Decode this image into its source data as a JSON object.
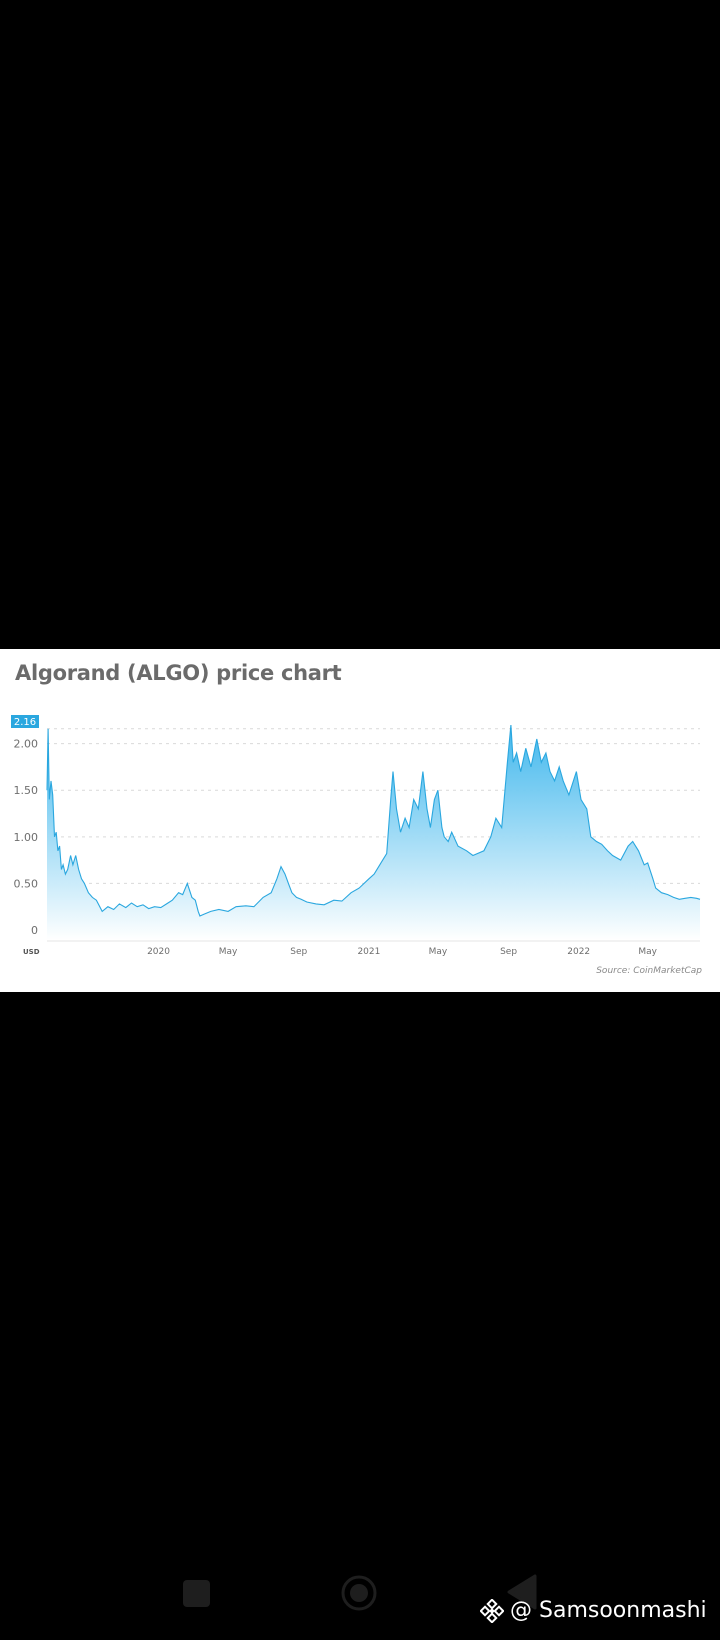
{
  "chart_card": {
    "title": "Algorand (ALGO) price chart",
    "source": "Source: CoinMarketCap",
    "current_value_label": "2.16",
    "unit_label": "USD"
  },
  "colors": {
    "line": "#2aa7df",
    "fill_top": "#38b4ec",
    "fill_bottom": "#ffffff",
    "badge": "#2aa7df",
    "background": "#000000"
  },
  "chart_data": {
    "type": "area",
    "title": "Algorand (ALGO) price chart",
    "ylabel": "USD",
    "ylim": [
      0,
      2.2
    ],
    "xlim": [
      "2019-06-21",
      "2022-07-31"
    ],
    "y_ticks": [
      "0",
      "0.50",
      "1.00",
      "1.50",
      "2.00"
    ],
    "x_ticks": [
      {
        "date": "2020-01-01",
        "label": "2020"
      },
      {
        "date": "2020-05-01",
        "label": "May"
      },
      {
        "date": "2020-09-01",
        "label": "Sep"
      },
      {
        "date": "2021-01-01",
        "label": "2021"
      },
      {
        "date": "2021-05-01",
        "label": "May"
      },
      {
        "date": "2021-09-01",
        "label": "Sep"
      },
      {
        "date": "2022-01-01",
        "label": "2022"
      },
      {
        "date": "2022-05-01",
        "label": "May"
      }
    ],
    "grid": true,
    "series": [
      {
        "x": [
          "2019-06-21",
          "2019-06-23",
          "2019-06-25",
          "2019-06-28",
          "2019-07-01",
          "2019-07-04",
          "2019-07-07",
          "2019-07-10",
          "2019-07-13",
          "2019-07-16",
          "2019-07-19",
          "2019-07-23",
          "2019-07-27",
          "2019-08-01",
          "2019-08-05",
          "2019-08-10",
          "2019-08-15",
          "2019-08-20",
          "2019-08-25",
          "2019-09-01",
          "2019-09-08",
          "2019-09-15",
          "2019-09-25",
          "2019-10-05",
          "2019-10-15",
          "2019-10-25",
          "2019-11-05",
          "2019-11-15",
          "2019-11-25",
          "2019-12-05",
          "2019-12-15",
          "2019-12-25",
          "2020-01-05",
          "2020-01-15",
          "2020-01-25",
          "2020-02-05",
          "2020-02-12",
          "2020-02-20",
          "2020-02-28",
          "2020-03-05",
          "2020-03-10",
          "2020-03-13",
          "2020-03-20",
          "2020-04-01",
          "2020-04-15",
          "2020-05-01",
          "2020-05-15",
          "2020-06-01",
          "2020-06-15",
          "2020-07-01",
          "2020-07-15",
          "2020-07-25",
          "2020-08-01",
          "2020-08-08",
          "2020-08-14",
          "2020-08-20",
          "2020-08-28",
          "2020-09-05",
          "2020-09-15",
          "2020-10-01",
          "2020-10-15",
          "2020-11-01",
          "2020-11-15",
          "2020-12-01",
          "2020-12-15",
          "2021-01-01",
          "2021-01-10",
          "2021-01-20",
          "2021-02-01",
          "2021-02-08",
          "2021-02-12",
          "2021-02-18",
          "2021-02-25",
          "2021-03-05",
          "2021-03-12",
          "2021-03-20",
          "2021-03-28",
          "2021-04-05",
          "2021-04-12",
          "2021-04-18",
          "2021-04-25",
          "2021-05-01",
          "2021-05-08",
          "2021-05-12",
          "2021-05-19",
          "2021-05-25",
          "2021-06-05",
          "2021-06-20",
          "2021-07-01",
          "2021-07-20",
          "2021-08-01",
          "2021-08-10",
          "2021-08-20",
          "2021-08-30",
          "2021-09-05",
          "2021-09-09",
          "2021-09-15",
          "2021-09-22",
          "2021-10-01",
          "2021-10-10",
          "2021-10-20",
          "2021-10-28",
          "2021-11-05",
          "2021-11-12",
          "2021-11-20",
          "2021-11-28",
          "2021-12-05",
          "2021-12-15",
          "2021-12-28",
          "2022-01-05",
          "2022-01-15",
          "2022-01-22",
          "2022-02-01",
          "2022-02-10",
          "2022-02-20",
          "2022-03-01",
          "2022-03-15",
          "2022-03-28",
          "2022-04-05",
          "2022-04-15",
          "2022-04-25",
          "2022-05-01",
          "2022-05-10",
          "2022-05-15",
          "2022-05-25",
          "2022-06-05",
          "2022-06-15",
          "2022-06-25",
          "2022-07-05",
          "2022-07-15",
          "2022-07-25",
          "2022-07-31"
        ],
        "y": [
          1.5,
          2.16,
          1.4,
          1.6,
          1.45,
          1.0,
          1.05,
          0.85,
          0.9,
          0.65,
          0.7,
          0.6,
          0.65,
          0.8,
          0.7,
          0.8,
          0.65,
          0.55,
          0.5,
          0.4,
          0.35,
          0.32,
          0.2,
          0.25,
          0.22,
          0.28,
          0.24,
          0.29,
          0.25,
          0.27,
          0.23,
          0.25,
          0.24,
          0.28,
          0.32,
          0.4,
          0.38,
          0.5,
          0.35,
          0.32,
          0.2,
          0.15,
          0.17,
          0.2,
          0.22,
          0.2,
          0.25,
          0.26,
          0.25,
          0.35,
          0.4,
          0.55,
          0.68,
          0.6,
          0.5,
          0.4,
          0.35,
          0.33,
          0.3,
          0.28,
          0.27,
          0.32,
          0.31,
          0.4,
          0.45,
          0.55,
          0.6,
          0.7,
          0.82,
          1.4,
          1.7,
          1.3,
          1.05,
          1.2,
          1.1,
          1.4,
          1.3,
          1.7,
          1.3,
          1.1,
          1.4,
          1.5,
          1.1,
          1.0,
          0.95,
          1.05,
          0.9,
          0.85,
          0.8,
          0.85,
          1.0,
          1.2,
          1.1,
          1.8,
          2.2,
          1.8,
          1.9,
          1.7,
          1.95,
          1.75,
          2.05,
          1.8,
          1.9,
          1.7,
          1.6,
          1.75,
          1.6,
          1.45,
          1.7,
          1.4,
          1.3,
          1.0,
          0.95,
          0.92,
          0.85,
          0.8,
          0.75,
          0.9,
          0.95,
          0.85,
          0.7,
          0.72,
          0.55,
          0.45,
          0.4,
          0.38,
          0.35,
          0.33,
          0.34,
          0.35,
          0.34,
          0.33
        ]
      }
    ]
  },
  "nav_bar": {
    "recent_icon": "square-icon",
    "home_icon": "circle-icon",
    "back_icon": "triangle-icon"
  },
  "watermark": {
    "text": "@ Samsoonmashi",
    "icon": "binance-logo-icon"
  }
}
